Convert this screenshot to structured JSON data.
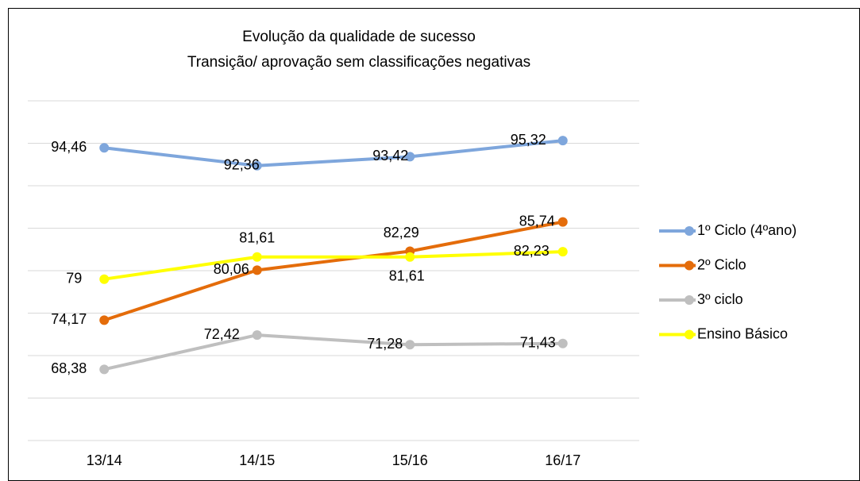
{
  "chart_data": {
    "type": "line",
    "title": "Evolução da qualidade de sucesso",
    "subtitle": "Transição/ aprovação sem classificações negativas",
    "categories": [
      "13/14",
      "14/15",
      "15/16",
      "16/17"
    ],
    "ylim": [
      60,
      100
    ],
    "yticks": [
      60,
      65,
      70,
      75,
      80,
      85,
      90,
      95,
      100
    ],
    "grid": true,
    "legend": "right",
    "series": [
      {
        "name": "1º Ciclo (4ºano)",
        "color": "#7ea6dc",
        "values": [
          94.46,
          92.36,
          93.42,
          95.32
        ],
        "value_labels": [
          "94,46",
          "92,36",
          "93,42",
          "95,32"
        ]
      },
      {
        "name": "2º Ciclo",
        "color": "#e46c0a",
        "values": [
          74.17,
          80.06,
          82.29,
          85.74
        ],
        "value_labels": [
          "74,17",
          "80,06",
          "82,29",
          "85,74"
        ]
      },
      {
        "name": "3º ciclo",
        "color": "#bfbfbf",
        "values": [
          68.38,
          72.42,
          71.28,
          71.43
        ],
        "value_labels": [
          "68,38",
          "72,42",
          "71,28",
          "71,43"
        ]
      },
      {
        "name": "Ensino Básico",
        "color": "#ffff00",
        "values": [
          79,
          81.61,
          81.61,
          82.23
        ],
        "value_labels": [
          "79",
          "81,61",
          "81,61",
          "82,23"
        ]
      }
    ]
  }
}
